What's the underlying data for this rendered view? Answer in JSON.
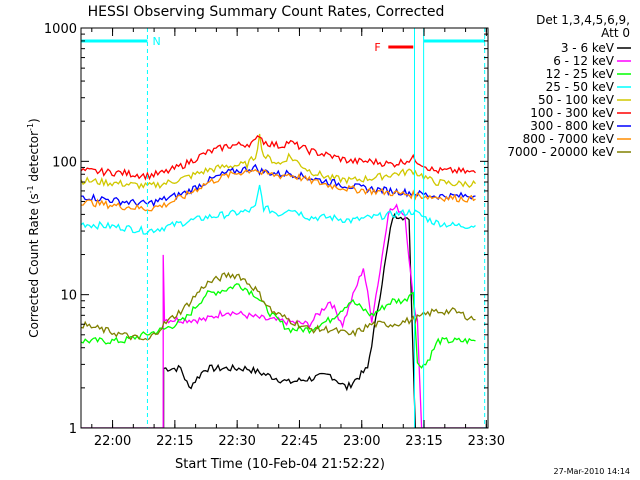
{
  "chart_data": {
    "type": "line",
    "title": "HESSI Observing Summary Count Rates, Corrected",
    "xlabel": "Start Time (10-Feb-04 21:52:22)",
    "ylabel": "Corrected Count Rate (s⁻¹ detector⁻¹)",
    "ylabel_main": "Corrected Count Rate (s",
    "ylabel_sup1": "-1",
    "ylabel_mid": " detector",
    "ylabel_sup2": "-1",
    "ylabel_end": ")",
    "x_unit": "minutes after 21:52:22",
    "xlim": [
      0,
      98
    ],
    "ylim": [
      1,
      1000
    ],
    "y_scale": "log",
    "x_ticks": [
      {
        "x": 7.6,
        "label": "22:00"
      },
      {
        "x": 22.6,
        "label": "22:15"
      },
      {
        "x": 37.6,
        "label": "22:30"
      },
      {
        "x": 52.6,
        "label": "22:45"
      },
      {
        "x": 67.6,
        "label": "23:00"
      },
      {
        "x": 82.6,
        "label": "23:15"
      },
      {
        "x": 97.6,
        "label": "23:30"
      }
    ],
    "y_ticks": [
      {
        "y": 1,
        "label": "1"
      },
      {
        "y": 10,
        "label": "10"
      },
      {
        "y": 100,
        "label": "100"
      },
      {
        "y": 1000,
        "label": "1000"
      }
    ],
    "legend_header": [
      "Det 1,3,4,5,6,9,",
      "Att 0"
    ],
    "legend_placement": "right",
    "series": [
      {
        "name": "3 - 6 keV",
        "color": "#000000",
        "points": [
          [
            0,
            1
          ],
          [
            19.9,
            1
          ],
          [
            19.9,
            2.8
          ],
          [
            24,
            2.8
          ],
          [
            26,
            2
          ],
          [
            30,
            2.8
          ],
          [
            40,
            2.8
          ],
          [
            50,
            2.2
          ],
          [
            60,
            2.5
          ],
          [
            64,
            2
          ],
          [
            69,
            2.8
          ],
          [
            72,
            10
          ],
          [
            75,
            38
          ],
          [
            77,
            40
          ],
          [
            79,
            35
          ],
          [
            80.5,
            1
          ],
          [
            98,
            1
          ]
        ]
      },
      {
        "name": "6 - 12 keV",
        "color": "#ff00ff",
        "points": [
          [
            0,
            1
          ],
          [
            19.8,
            1
          ],
          [
            19.8,
            21
          ],
          [
            20.1,
            6.5
          ],
          [
            30,
            6.5
          ],
          [
            35,
            7.5
          ],
          [
            45,
            6.5
          ],
          [
            55,
            6
          ],
          [
            60,
            9
          ],
          [
            63,
            6
          ],
          [
            68,
            16
          ],
          [
            70,
            6.5
          ],
          [
            72,
            15
          ],
          [
            74,
            42
          ],
          [
            76,
            45
          ],
          [
            78,
            40
          ],
          [
            80,
            9
          ],
          [
            81,
            6.5
          ],
          [
            82,
            1
          ],
          [
            98,
            1
          ]
        ]
      },
      {
        "name": "12 - 25 keV",
        "color": "#00ff00",
        "points": [
          [
            0,
            4.5
          ],
          [
            10,
            4.5
          ],
          [
            20,
            5.5
          ],
          [
            25,
            6.5
          ],
          [
            30,
            10
          ],
          [
            35,
            11
          ],
          [
            38,
            12
          ],
          [
            42,
            10
          ],
          [
            46,
            7
          ],
          [
            50,
            5.5
          ],
          [
            55,
            5.5
          ],
          [
            60,
            6.5
          ],
          [
            65,
            9
          ],
          [
            70,
            7
          ],
          [
            75,
            9
          ],
          [
            78,
            9
          ],
          [
            80,
            11
          ],
          [
            81,
            3
          ],
          [
            83,
            3
          ],
          [
            86,
            4.5
          ],
          [
            90,
            4.5
          ],
          [
            95,
            4.5
          ]
        ]
      },
      {
        "name": "25 - 50 keV",
        "color": "#00ffff",
        "points": [
          [
            0,
            34
          ],
          [
            10,
            32
          ],
          [
            16,
            30
          ],
          [
            20,
            32
          ],
          [
            25,
            35
          ],
          [
            30,
            38
          ],
          [
            35,
            40
          ],
          [
            40,
            42
          ],
          [
            42,
            45
          ],
          [
            43,
            65
          ],
          [
            44,
            45
          ],
          [
            48,
            40
          ],
          [
            50,
            45
          ],
          [
            55,
            38
          ],
          [
            60,
            38
          ],
          [
            65,
            36
          ],
          [
            70,
            38
          ],
          [
            75,
            40
          ],
          [
            80,
            42
          ],
          [
            85,
            35
          ],
          [
            90,
            33
          ],
          [
            95,
            33
          ]
        ]
      },
      {
        "name": "50 - 100 keV",
        "color": "#d0c800",
        "points": [
          [
            0,
            72
          ],
          [
            10,
            68
          ],
          [
            16,
            65
          ],
          [
            20,
            68
          ],
          [
            25,
            75
          ],
          [
            30,
            85
          ],
          [
            35,
            92
          ],
          [
            40,
            95
          ],
          [
            42,
            110
          ],
          [
            43,
            155
          ],
          [
            44,
            110
          ],
          [
            48,
            95
          ],
          [
            50,
            110
          ],
          [
            55,
            85
          ],
          [
            60,
            75
          ],
          [
            65,
            72
          ],
          [
            70,
            75
          ],
          [
            75,
            80
          ],
          [
            80,
            85
          ],
          [
            85,
            70
          ],
          [
            90,
            68
          ],
          [
            95,
            68
          ]
        ]
      },
      {
        "name": "100 - 300 keV",
        "color": "#ff0000",
        "points": [
          [
            0,
            85
          ],
          [
            10,
            82
          ],
          [
            16,
            78
          ],
          [
            20,
            82
          ],
          [
            25,
            95
          ],
          [
            30,
            115
          ],
          [
            35,
            130
          ],
          [
            40,
            135
          ],
          [
            42,
            140
          ],
          [
            43,
            160
          ],
          [
            44,
            140
          ],
          [
            48,
            130
          ],
          [
            50,
            140
          ],
          [
            55,
            120
          ],
          [
            60,
            110
          ],
          [
            65,
            100
          ],
          [
            70,
            100
          ],
          [
            75,
            95
          ],
          [
            80,
            105
          ],
          [
            85,
            85
          ],
          [
            90,
            85
          ],
          [
            95,
            82
          ]
        ]
      },
      {
        "name": "300 - 800 keV",
        "color": "#0000ff",
        "points": [
          [
            0,
            55
          ],
          [
            10,
            50
          ],
          [
            16,
            48
          ],
          [
            20,
            52
          ],
          [
            25,
            58
          ],
          [
            30,
            70
          ],
          [
            35,
            82
          ],
          [
            40,
            88
          ],
          [
            42,
            90
          ],
          [
            43,
            85
          ],
          [
            48,
            80
          ],
          [
            50,
            82
          ],
          [
            55,
            75
          ],
          [
            60,
            70
          ],
          [
            65,
            65
          ],
          [
            70,
            62
          ],
          [
            75,
            60
          ],
          [
            80,
            58
          ],
          [
            85,
            55
          ],
          [
            90,
            55
          ],
          [
            95,
            55
          ]
        ]
      },
      {
        "name": "800 - 7000 keV",
        "color": "#ff8c00",
        "points": [
          [
            0,
            50
          ],
          [
            10,
            46
          ],
          [
            16,
            44
          ],
          [
            20,
            47
          ],
          [
            25,
            55
          ],
          [
            30,
            68
          ],
          [
            35,
            78
          ],
          [
            40,
            85
          ],
          [
            42,
            88
          ],
          [
            43,
            82
          ],
          [
            48,
            78
          ],
          [
            50,
            80
          ],
          [
            55,
            72
          ],
          [
            60,
            66
          ],
          [
            65,
            62
          ],
          [
            70,
            60
          ],
          [
            75,
            58
          ],
          [
            80,
            56
          ],
          [
            85,
            54
          ],
          [
            90,
            53
          ],
          [
            95,
            52
          ]
        ]
      },
      {
        "name": "7000 - 20000 keV",
        "color": "#808000",
        "points": [
          [
            0,
            6
          ],
          [
            10,
            5
          ],
          [
            16,
            4.5
          ],
          [
            20,
            6
          ],
          [
            25,
            8
          ],
          [
            30,
            12
          ],
          [
            35,
            14
          ],
          [
            38,
            14
          ],
          [
            42,
            11
          ],
          [
            46,
            7.5
          ],
          [
            50,
            6.5
          ],
          [
            55,
            5.5
          ],
          [
            60,
            5.5
          ],
          [
            65,
            5
          ],
          [
            70,
            6
          ],
          [
            75,
            6
          ],
          [
            80,
            6.5
          ],
          [
            85,
            7.5
          ],
          [
            90,
            7.5
          ],
          [
            95,
            6.5
          ]
        ]
      }
    ],
    "annotations": [
      {
        "label": "N",
        "color": "#ff0000",
        "text_color": "#00ffff"
      },
      {
        "label": "F",
        "color": "#ff0000"
      }
    ],
    "flags": [
      {
        "name": "N",
        "color": "#00ffff",
        "start": 0,
        "end": 16
      },
      {
        "name": "F",
        "color": "#ff0000",
        "start": 74,
        "end": 80
      }
    ],
    "vlines": [
      {
        "x": 16.0,
        "color": "#00ffff",
        "dashed": true
      },
      {
        "x": 80.3,
        "color": "#00ffff",
        "dashed": false
      },
      {
        "x": 82.5,
        "color": "#00ffff",
        "dashed": false
      },
      {
        "x": 97.2,
        "color": "#00ffff",
        "dashed": true
      }
    ]
  },
  "footer": {
    "timestamp": "27-Mar-2010 14:14"
  }
}
